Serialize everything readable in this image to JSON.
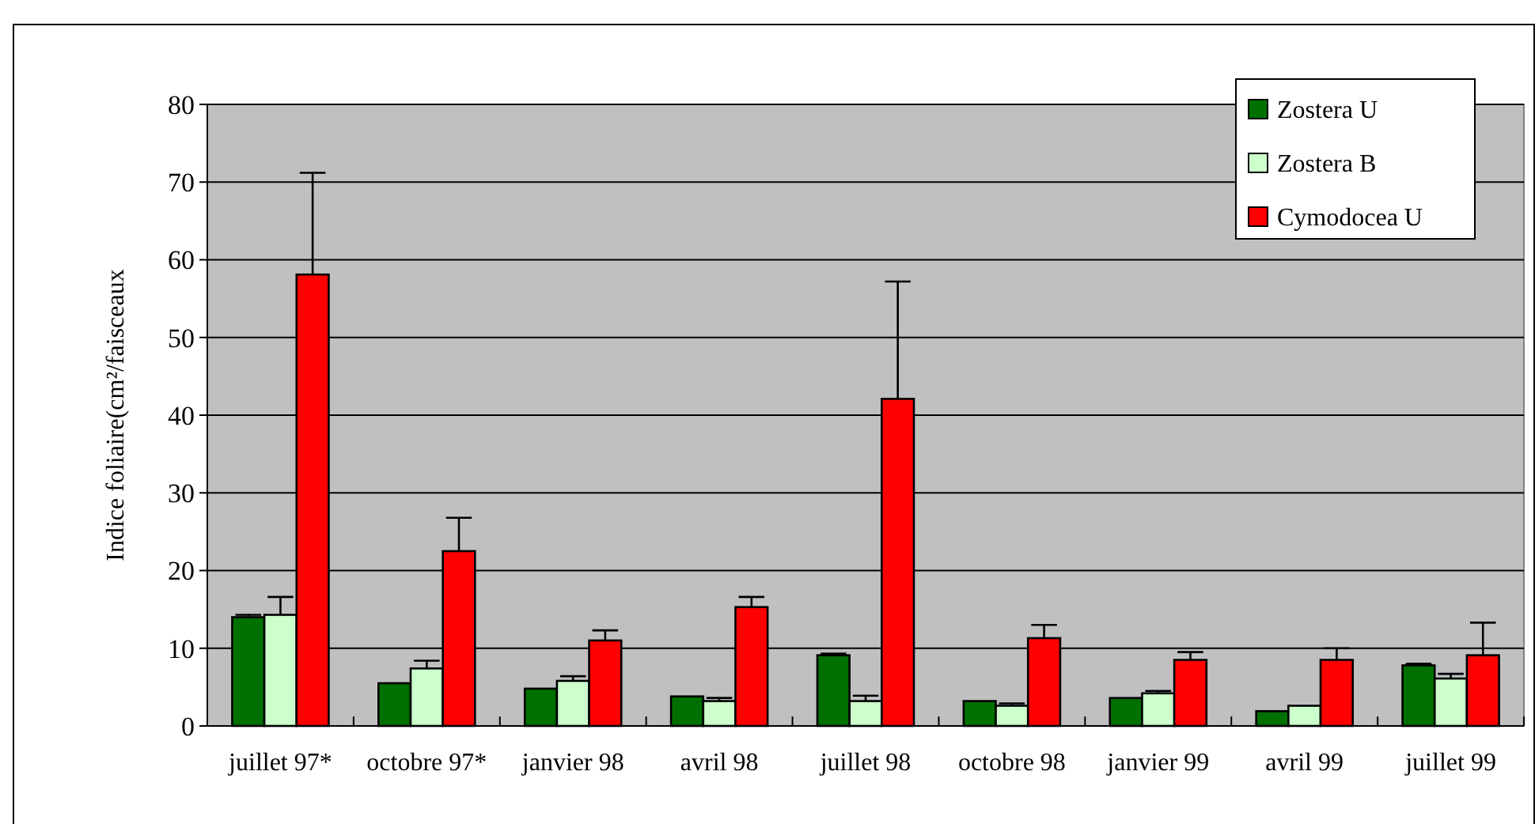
{
  "chart_data": {
    "type": "bar",
    "ylabel": "Indice foliaire(cm²/faisceaux",
    "categories": [
      "juillet 97*",
      "octobre 97*",
      "janvier 98",
      "avril 98",
      "juillet 98",
      "octobre 98",
      "janvier 99",
      "avril 99",
      "juillet 99"
    ],
    "series": [
      {
        "name": "Zostera U",
        "color": "#007000",
        "values": [
          14,
          5.5,
          4.8,
          3.8,
          9.1,
          3.2,
          3.6,
          1.9,
          7.8
        ],
        "errors": [
          [
            14,
            14.3
          ],
          null,
          null,
          null,
          [
            9.1,
            9.3
          ],
          null,
          null,
          null,
          [
            7.8,
            8
          ]
        ]
      },
      {
        "name": "Zostera B",
        "color": "#ccffcc",
        "values": [
          14.3,
          7.4,
          5.8,
          3.2,
          3.2,
          2.6,
          4.2,
          2.6,
          6.1
        ],
        "errors": [
          [
            14.3,
            16.6
          ],
          [
            7.4,
            8.4
          ],
          [
            5.8,
            6.4
          ],
          [
            3.2,
            3.6
          ],
          [
            3.2,
            3.9
          ],
          [
            2.6,
            2.9
          ],
          [
            4.2,
            4.5
          ],
          null,
          [
            6.1,
            6.7
          ]
        ]
      },
      {
        "name": "Cymodocea U",
        "color": "#ff0000",
        "values": [
          58.1,
          22.5,
          11,
          15.3,
          42.1,
          11.3,
          8.5,
          8.5,
          9.1
        ],
        "errors": [
          [
            58.1,
            71.2
          ],
          [
            22.5,
            26.8
          ],
          [
            11,
            12.3
          ],
          [
            15.3,
            16.6
          ],
          [
            42.1,
            57.2
          ],
          [
            11.3,
            13
          ],
          [
            8.5,
            9.5
          ],
          [
            8.5,
            10
          ],
          [
            9.1,
            13.3
          ]
        ]
      }
    ],
    "ylim": [
      0,
      80
    ],
    "yticks": [
      0,
      10,
      20,
      30,
      40,
      50,
      60,
      70,
      80
    ],
    "grid": "y",
    "legend": "top right"
  }
}
